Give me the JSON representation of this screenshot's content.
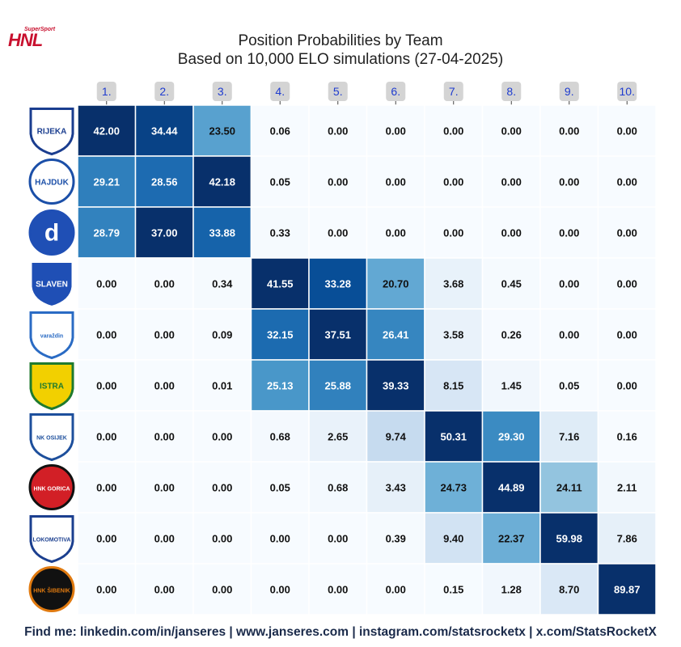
{
  "logo": {
    "brand_small": "SuperSport",
    "brand_main": "HNL"
  },
  "colors": {
    "accent": "#c8102e",
    "footer_text": "#1a2a4a",
    "header_badge_bg": "#d4d4d4",
    "header_text": "#1f3ccf"
  },
  "chart_data": {
    "type": "heatmap",
    "title": "Position Probabilities by Team",
    "subtitle": "Based on 10,000 ELO simulations (27-04-2025)",
    "columns": [
      "1.",
      "2.",
      "3.",
      "4.",
      "5.",
      "6.",
      "7.",
      "8.",
      "9.",
      "10."
    ],
    "rows": [
      {
        "team": "Rijeka",
        "badge_text": "RIJEKA",
        "values": [
          42.0,
          34.44,
          23.5,
          0.06,
          0.0,
          0.0,
          0.0,
          0.0,
          0.0,
          0.0
        ]
      },
      {
        "team": "Hajduk Split",
        "badge_text": "HAJDUK",
        "values": [
          29.21,
          28.56,
          42.18,
          0.05,
          0.0,
          0.0,
          0.0,
          0.0,
          0.0,
          0.0
        ]
      },
      {
        "team": "Dinamo Zagreb",
        "badge_text": "d",
        "values": [
          28.79,
          37.0,
          33.88,
          0.33,
          0.0,
          0.0,
          0.0,
          0.0,
          0.0,
          0.0
        ]
      },
      {
        "team": "Slaven Belupo",
        "badge_text": "SLAVEN",
        "values": [
          0.0,
          0.0,
          0.34,
          41.55,
          33.28,
          20.7,
          3.68,
          0.45,
          0.0,
          0.0
        ]
      },
      {
        "team": "Varaždin",
        "badge_text": "varaždin",
        "values": [
          0.0,
          0.0,
          0.09,
          32.15,
          37.51,
          26.41,
          3.58,
          0.26,
          0.0,
          0.0
        ]
      },
      {
        "team": "Istra 1961",
        "badge_text": "ISTRA",
        "values": [
          0.0,
          0.0,
          0.01,
          25.13,
          25.88,
          39.33,
          8.15,
          1.45,
          0.05,
          0.0
        ]
      },
      {
        "team": "Osijek",
        "badge_text": "NK OSIJEK",
        "values": [
          0.0,
          0.0,
          0.0,
          0.68,
          2.65,
          9.74,
          50.31,
          29.3,
          7.16,
          0.16
        ]
      },
      {
        "team": "Gorica",
        "badge_text": "HNK GORICA",
        "values": [
          0.0,
          0.0,
          0.0,
          0.05,
          0.68,
          3.43,
          24.73,
          44.89,
          24.11,
          2.11
        ]
      },
      {
        "team": "Lokomotiva",
        "badge_text": "LOKOMOTIVA",
        "values": [
          0.0,
          0.0,
          0.0,
          0.0,
          0.0,
          0.39,
          9.4,
          22.37,
          59.98,
          7.86
        ]
      },
      {
        "team": "Šibenik",
        "badge_text": "HNK ŠIBENIK",
        "values": [
          0.0,
          0.0,
          0.0,
          0.0,
          0.0,
          0.0,
          0.15,
          1.28,
          8.7,
          89.87
        ]
      }
    ],
    "per_column_max_normalized": true,
    "colormap": "Blues"
  },
  "footer": "Find me: linkedin.com/in/janseres | www.janseres.com | instagram.com/statsrocketx | x.com/StatsRocketX"
}
